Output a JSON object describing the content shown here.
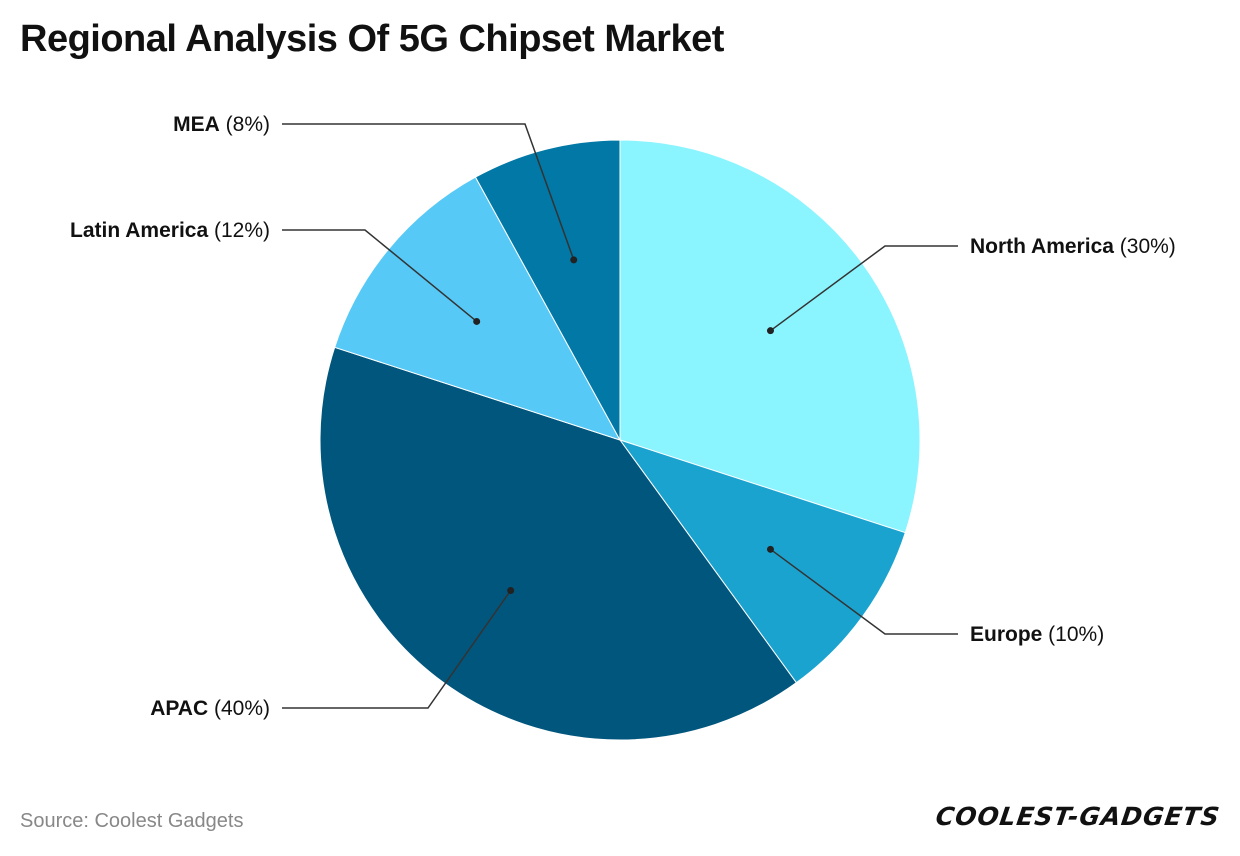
{
  "chart_data": {
    "type": "pie",
    "title": "Regional Analysis Of 5G Chipset Market",
    "categories": [
      "North America",
      "Europe",
      "APAC",
      "Latin America",
      "MEA"
    ],
    "values": [
      30,
      10,
      40,
      12,
      8
    ],
    "percent_labels": [
      "(30%)",
      "(10%)",
      "(40%)",
      "(12%)",
      "(8%)"
    ],
    "colors": [
      "#8AF4FF",
      "#1BA3CF",
      "#01567D",
      "#56C9F7",
      "#0178A6"
    ],
    "start_angle": "12 o'clock",
    "direction": "clockwise",
    "legend": "none (leader-line labels)"
  },
  "footer": {
    "source": "Source: Coolest Gadgets",
    "brand": "COOLEST-GADGETS"
  }
}
